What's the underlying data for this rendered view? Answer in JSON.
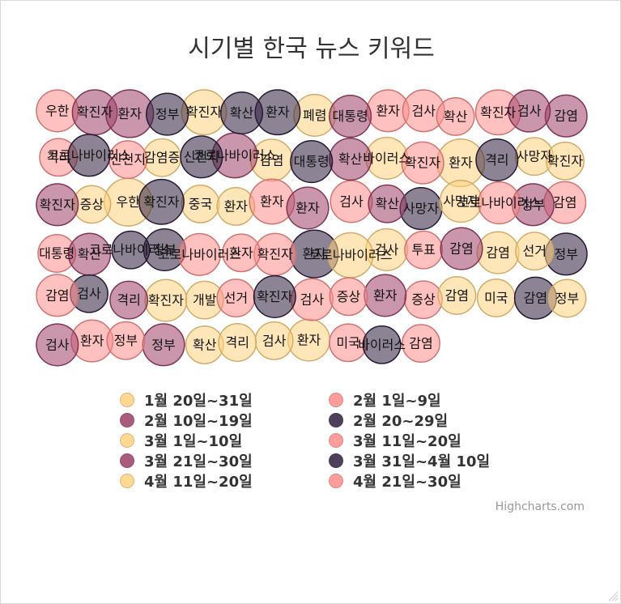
{
  "chart_data": {
    "type": "packedbubble",
    "title": "시기별 한국 뉴스 키워드",
    "series": [
      {
        "name": "1월 20일~31일",
        "color": "#FFD27F",
        "values": [
          {
            "name": "감염",
            "value": 2
          },
          {
            "name": "폐렴",
            "value": 2
          },
          {
            "name": "확진자",
            "value": 3
          },
          {
            "name": "환자",
            "value": 4
          },
          {
            "name": "감염증",
            "value": 1
          },
          {
            "name": "사망자",
            "value": 1
          },
          {
            "name": "중국",
            "value": 1
          },
          {
            "name": "바이러스",
            "value": 2
          },
          {
            "name": "우한",
            "value": 4
          },
          {
            "name": "확진자",
            "value": 1
          },
          {
            "name": "증상",
            "value": 1
          },
          {
            "name": "환자",
            "value": 1
          }
        ]
      },
      {
        "name": "2월 1일~9일",
        "color": "#FF8C8C",
        "values": [
          {
            "name": "검사",
            "value": 2
          },
          {
            "name": "확진자",
            "value": 3
          },
          {
            "name": "우한",
            "value": 2
          },
          {
            "name": "감염",
            "value": 2
          },
          {
            "name": "격리",
            "value": 1
          },
          {
            "name": "환자",
            "value": 2
          },
          {
            "name": "검사",
            "value": 2
          },
          {
            "name": "확진자",
            "value": 2
          },
          {
            "name": "확산",
            "value": 1
          },
          {
            "name": "신천지",
            "value": 1
          },
          {
            "name": "감염",
            "value": 1
          },
          {
            "name": "환자",
            "value": 3
          }
        ]
      },
      {
        "name": "2월 10일~19일",
        "color": "#9C4068",
        "values": [
          {
            "name": "감염",
            "value": 2
          },
          {
            "name": "환자",
            "value": 2
          },
          {
            "name": "확진자",
            "value": 3
          },
          {
            "name": "검사",
            "value": 2
          },
          {
            "name": "확산",
            "value": 2
          },
          {
            "name": "정부",
            "value": 2
          },
          {
            "name": "환자",
            "value": 4
          },
          {
            "name": "확진자",
            "value": 2
          },
          {
            "name": "대통령",
            "value": 2
          },
          {
            "name": "코로나바이러스",
            "value": 3
          }
        ]
      },
      {
        "name": "2월 20~29일",
        "color": "#2E1F3E",
        "values": [
          {
            "name": "확진자",
            "value": 3
          },
          {
            "name": "정부",
            "value": 2
          },
          {
            "name": "사망자",
            "value": 2
          },
          {
            "name": "코로나바이러스",
            "value": 2
          },
          {
            "name": "대통령",
            "value": 2
          },
          {
            "name": "격리",
            "value": 2
          },
          {
            "name": "환자",
            "value": 3
          },
          {
            "name": "신천지",
            "value": 2
          },
          {
            "name": "확산",
            "value": 2
          },
          {
            "name": "정부",
            "value": 2
          },
          {
            "name": "환자",
            "value": 4
          }
        ]
      },
      {
        "name": "3월 1일~10일",
        "color": "#FFD27F",
        "values": [
          {
            "name": "확진자",
            "value": 2
          },
          {
            "name": "미국",
            "value": 1
          },
          {
            "name": "개발",
            "value": 1
          },
          {
            "name": "검사",
            "value": 2
          },
          {
            "name": "확산",
            "value": 1
          },
          {
            "name": "사망자",
            "value": 2
          },
          {
            "name": "감염",
            "value": 2
          },
          {
            "name": "환자",
            "value": 2
          },
          {
            "name": "코로나바이러스",
            "value": 3
          }
        ]
      },
      {
        "name": "3월 11일~20일",
        "color": "#FF8C8C",
        "values": [
          {
            "name": "검사",
            "value": 2
          },
          {
            "name": "확진자",
            "value": 2
          },
          {
            "name": "투표",
            "value": 1
          },
          {
            "name": "미국",
            "value": 1
          },
          {
            "name": "증상",
            "value": 1
          },
          {
            "name": "환자",
            "value": 2
          },
          {
            "name": "대통령",
            "value": 1
          },
          {
            "name": "선거",
            "value": 1
          },
          {
            "name": "코로나바이러스",
            "value": 2
          }
        ]
      },
      {
        "name": "3월 21일~30일",
        "color": "#9C4068",
        "values": [
          {
            "name": "검사",
            "value": 2
          },
          {
            "name": "감염",
            "value": 2
          },
          {
            "name": "정부",
            "value": 2
          },
          {
            "name": "확산",
            "value": 2
          },
          {
            "name": "환자",
            "value": 2
          },
          {
            "name": "확산",
            "value": 1
          },
          {
            "name": "격리",
            "value": 1
          }
        ]
      },
      {
        "name": "3월 31일~4월 10일",
        "color": "#2E1F3E",
        "values": [
          {
            "name": "정부",
            "value": 2
          },
          {
            "name": "감염",
            "value": 2
          },
          {
            "name": "검사",
            "value": 1
          },
          {
            "name": "바이러스",
            "value": 1
          },
          {
            "name": "확진자",
            "value": 2
          },
          {
            "name": "코로나바이러스",
            "value": 1
          }
        ]
      },
      {
        "name": "4월 11일~20일",
        "color": "#FFD27F",
        "values": [
          {
            "name": "검사",
            "value": 1
          },
          {
            "name": "정부",
            "value": 1
          },
          {
            "name": "격리",
            "value": 1
          },
          {
            "name": "감염",
            "value": 1
          },
          {
            "name": "선거",
            "value": 1
          }
        ]
      },
      {
        "name": "4월 21일~30일",
        "color": "#FF8C8C",
        "values": [
          {
            "name": "감염",
            "value": 2
          },
          {
            "name": "코로나바이러스",
            "value": 2
          },
          {
            "name": "증상",
            "value": 1
          },
          {
            "name": "환자",
            "value": 1
          },
          {
            "name": "정부",
            "value": 1
          }
        ]
      }
    ],
    "legend_position": "bottom",
    "credits": "Highcharts.com"
  }
}
